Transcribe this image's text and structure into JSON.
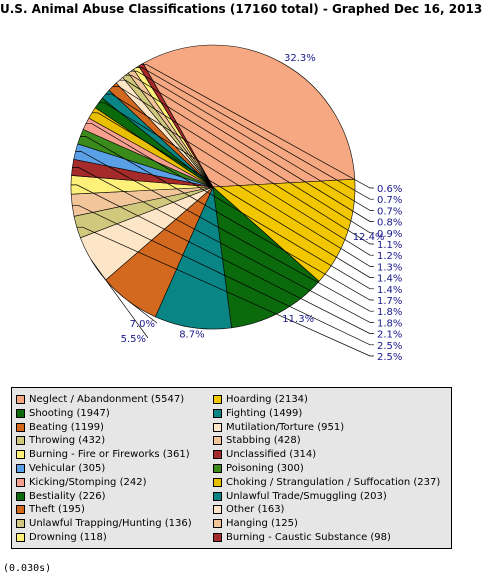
{
  "title": "U.S. Animal Abuse Classifications (17160 total) - Graphed Dec 16, 2013",
  "timing": "(0.030s)",
  "chart_data": {
    "type": "pie",
    "title": "U.S. Animal Abuse Classifications (17160 total) - Graphed Dec 16, 2013",
    "total": 17160,
    "slices": [
      {
        "label": "Neglect / Abandonment",
        "value": 5547,
        "percent_label": "32.3%",
        "color": "#f5a882"
      },
      {
        "label": "Hoarding",
        "value": 2134,
        "percent_label": "12.4%",
        "color": "#f2c700"
      },
      {
        "label": "Shooting",
        "value": 1947,
        "percent_label": "11.3%",
        "color": "#0b6a0b"
      },
      {
        "label": "Fighting",
        "value": 1499,
        "percent_label": "8.7%",
        "color": "#0a8585"
      },
      {
        "label": "Beating",
        "value": 1199,
        "percent_label": "7.0%",
        "color": "#d2691e"
      },
      {
        "label": "Mutilation/Torture",
        "value": 951,
        "percent_label": "5.5%",
        "color": "#fde5c8"
      },
      {
        "label": "Throwing",
        "value": 432,
        "percent_label": "2.5%",
        "color": "#cfc87d"
      },
      {
        "label": "Stabbing",
        "value": 428,
        "percent_label": "2.5%",
        "color": "#f2c59a"
      },
      {
        "label": "Burning - Fire or Fireworks",
        "value": 361,
        "percent_label": "2.1%",
        "color": "#fff07a"
      },
      {
        "label": "Unclassified",
        "value": 314,
        "percent_label": "1.8%",
        "color": "#a52a2a"
      },
      {
        "label": "Vehicular",
        "value": 305,
        "percent_label": "1.8%",
        "color": "#5aa0e6"
      },
      {
        "label": "Poisoning",
        "value": 300,
        "percent_label": "1.7%",
        "color": "#3a8a1c"
      },
      {
        "label": "Kicking/Stomping",
        "value": 242,
        "percent_label": "1.4%",
        "color": "#f8a090"
      },
      {
        "label": "Choking / Strangulation / Suffocation",
        "value": 237,
        "percent_label": "1.4%",
        "color": "#e8c000"
      },
      {
        "label": "Bestiality",
        "value": 226,
        "percent_label": "1.3%",
        "color": "#0b6a0b"
      },
      {
        "label": "Unlawful Trade/Smuggling",
        "value": 203,
        "percent_label": "1.2%",
        "color": "#0a8585"
      },
      {
        "label": "Theft",
        "value": 195,
        "percent_label": "1.1%",
        "color": "#d2691e"
      },
      {
        "label": "Other",
        "value": 163,
        "percent_label": "0.9%",
        "color": "#fde5c8"
      },
      {
        "label": "Unlawful Trapping/Hunting",
        "value": 136,
        "percent_label": "0.8%",
        "color": "#cfc87d"
      },
      {
        "label": "Hanging",
        "value": 125,
        "percent_label": "0.7%",
        "color": "#f2c59a"
      },
      {
        "label": "Drowning",
        "value": 118,
        "percent_label": "0.7%",
        "color": "#fff07a"
      },
      {
        "label": "Burning - Caustic Substance",
        "value": 98,
        "percent_label": "0.6%",
        "color": "#a52a2a"
      }
    ],
    "legend_entries": [
      "Neglect / Abandonment (5547)",
      "Hoarding (2134)",
      "Shooting (1947)",
      "Fighting (1499)",
      "Beating (1199)",
      "Mutilation/Torture (951)",
      "Throwing (432)",
      "Stabbing (428)",
      "Burning - Fire or Fireworks (361)",
      "Unclassified (314)",
      "Vehicular (305)",
      "Poisoning (300)",
      "Kicking/Stomping (242)",
      "Choking / Strangulation / Suffocation (237)",
      "Bestiality (226)",
      "Unlawful Trade/Smuggling (203)",
      "Theft (195)",
      "Other (163)",
      "Unlawful Trapping/Hunting (136)",
      "Hanging (125)",
      "Drowning (118)",
      "Burning - Caustic Substance (98)"
    ],
    "legend_placement": "bottom",
    "label_color": "#1a1a8c"
  }
}
